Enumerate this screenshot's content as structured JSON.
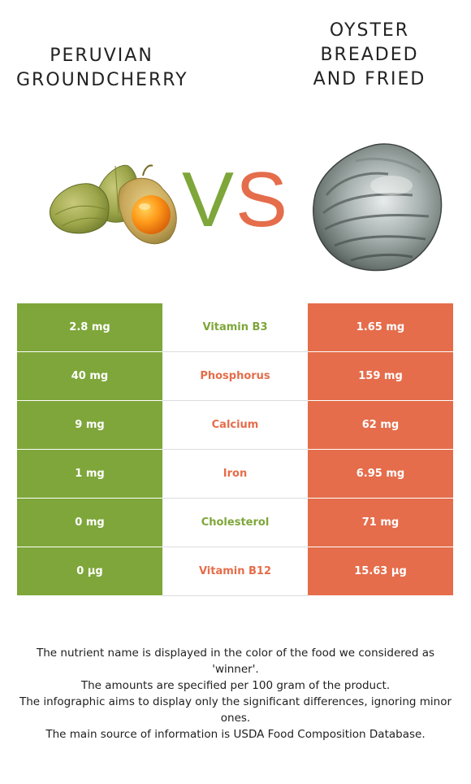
{
  "food_left": {
    "title_lines": [
      "PERUVIAN",
      "GROUNDCHERRY"
    ],
    "image_icon": "groundcherry-fruit-icon",
    "color": "#7ea63a"
  },
  "food_right": {
    "title_lines": [
      "OYSTER",
      "BREADED",
      "AND FRIED"
    ],
    "image_icon": "oyster-shell-icon",
    "color": "#e56d4b"
  },
  "vs": {
    "v": "V",
    "s": "S"
  },
  "nutrients": [
    {
      "name": "Vitamin B3",
      "left": "2.8 mg",
      "right": "1.65 mg",
      "winner": "left"
    },
    {
      "name": "Phosphorus",
      "left": "40 mg",
      "right": "159 mg",
      "winner": "right"
    },
    {
      "name": "Calcium",
      "left": "9 mg",
      "right": "62 mg",
      "winner": "right"
    },
    {
      "name": "Iron",
      "left": "1 mg",
      "right": "6.95 mg",
      "winner": "right"
    },
    {
      "name": "Cholesterol",
      "left": "0 mg",
      "right": "71 mg",
      "winner": "left"
    },
    {
      "name": "Vitamin B12",
      "left": "0 µg",
      "right": "15.63 µg",
      "winner": "right"
    }
  ],
  "notes": [
    "The nutrient name is displayed in the color of the food we considered as 'winner'.",
    "The amounts are specified per 100 gram of the product.",
    "The infographic aims to display only the significant differences, ignoring minor ones.",
    "The main source of information is USDA Food Composition Database."
  ]
}
